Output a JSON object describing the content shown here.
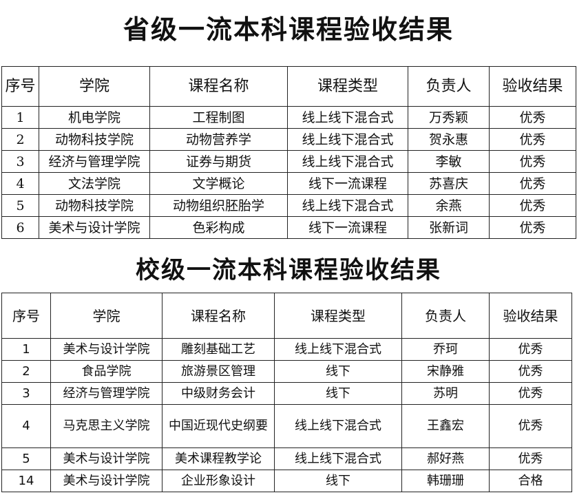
{
  "provincial": {
    "title": "省级一流本科课程验收结果",
    "headers": [
      "序号",
      "学院",
      "课程名称",
      "课程类型",
      "负责人",
      "验收结果"
    ],
    "rows": [
      [
        "1",
        "机电学院",
        "工程制图",
        "线上线下混合式",
        "万秀颖",
        "优秀"
      ],
      [
        "2",
        "动物科技学院",
        "动物营养学",
        "线上线下混合式",
        "贺永惠",
        "优秀"
      ],
      [
        "3",
        "经济与管理学院",
        "证券与期货",
        "线上线下混合式",
        "李敏",
        "优秀"
      ],
      [
        "4",
        "文法学院",
        "文学概论",
        "线下一流课程",
        "苏喜庆",
        "优秀"
      ],
      [
        "5",
        "动物科技学院",
        "动物组织胚胎学",
        "线上线下混合式",
        "余燕",
        "优秀"
      ],
      [
        "6",
        "美术与设计学院",
        "色彩构成",
        "线下一流课程",
        "张新词",
        "优秀"
      ]
    ]
  },
  "university": {
    "title": "校级一流本科课程验收结果",
    "headers": [
      "序号",
      "学院",
      "课程名称",
      "课程类型",
      "负责人",
      "验收结果"
    ],
    "rows": [
      [
        "1",
        "美术与设计学院",
        "雕刻基础工艺",
        "线上线下混合式",
        "乔珂",
        "优秀"
      ],
      [
        "2",
        "食品学院",
        "旅游景区管理",
        "线下",
        "宋静雅",
        "优秀"
      ],
      [
        "3",
        "经济与管理学院",
        "中级财务会计",
        "线下",
        "苏明",
        "优秀"
      ],
      [
        "4",
        "马克思主义学院",
        "中国近现代史纲要",
        "线上线下混合式",
        "王鑫宏",
        "优秀"
      ],
      [
        "5",
        "美术与设计学院",
        "美术课程教学论",
        "线上线下混合式",
        "郝好燕",
        "优秀"
      ],
      [
        "14",
        "美术与设计学院",
        "企业形象设计",
        "线下",
        "韩珊珊",
        "合格"
      ]
    ]
  }
}
